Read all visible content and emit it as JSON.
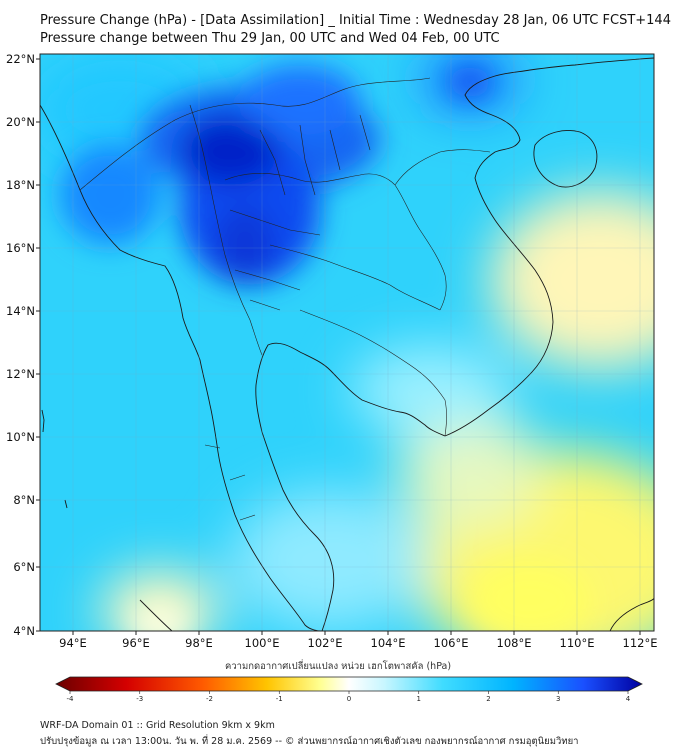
{
  "title_line1": "Pressure Change (hPa) - [Data Assimilation] _ Initial Time : Wednesday 28 Jan, 06 UTC FCST+144",
  "title_line2": "Pressure change between Thu 29 Jan, 00 UTC and Wed 04 Feb, 00 UTC",
  "lat_labels": [
    "22°N",
    "20°N",
    "18°N",
    "16°N",
    "14°N",
    "12°N",
    "10°N",
    "8°N",
    "6°N",
    "4°N"
  ],
  "lon_labels": [
    "94°E",
    "96°E",
    "98°E",
    "100°E",
    "102°E",
    "104°E",
    "106°E",
    "108°E",
    "110°E",
    "112°E"
  ],
  "map_extent": {
    "lon": [
      93,
      112.5
    ],
    "lat": [
      4,
      22.3
    ]
  },
  "colorbar": {
    "title": "ความกดอากาศเปลี่ยนแปลง หน่วย เฮกโตพาสคัล (hPa)",
    "tick_labels": [
      "-4",
      "-3",
      "-2",
      "-1",
      "0",
      "1",
      "2",
      "3",
      "4"
    ],
    "range": [
      -4,
      4
    ],
    "colors": [
      "#6b0000",
      "#e00000",
      "#ff6a00",
      "#ffd700",
      "#ffff80",
      "#ffffff",
      "#a0f0ff",
      "#00c8ff",
      "#1a64ff",
      "#0000b0"
    ]
  },
  "footer_line1": "WRF-DA Domain 01 :: Grid Resolution 9km x 9km",
  "footer_line2": "ปรับปรุงข้อมูล ณ เวลา 13:00น. วัน พ. ที่ 28 ม.ค. 2569 -- © ส่วนพยากรณ์อากาศเชิงตัวเลข กองพยากรณ์อากาศ กรมอุตุนิยมวิทยา"
}
